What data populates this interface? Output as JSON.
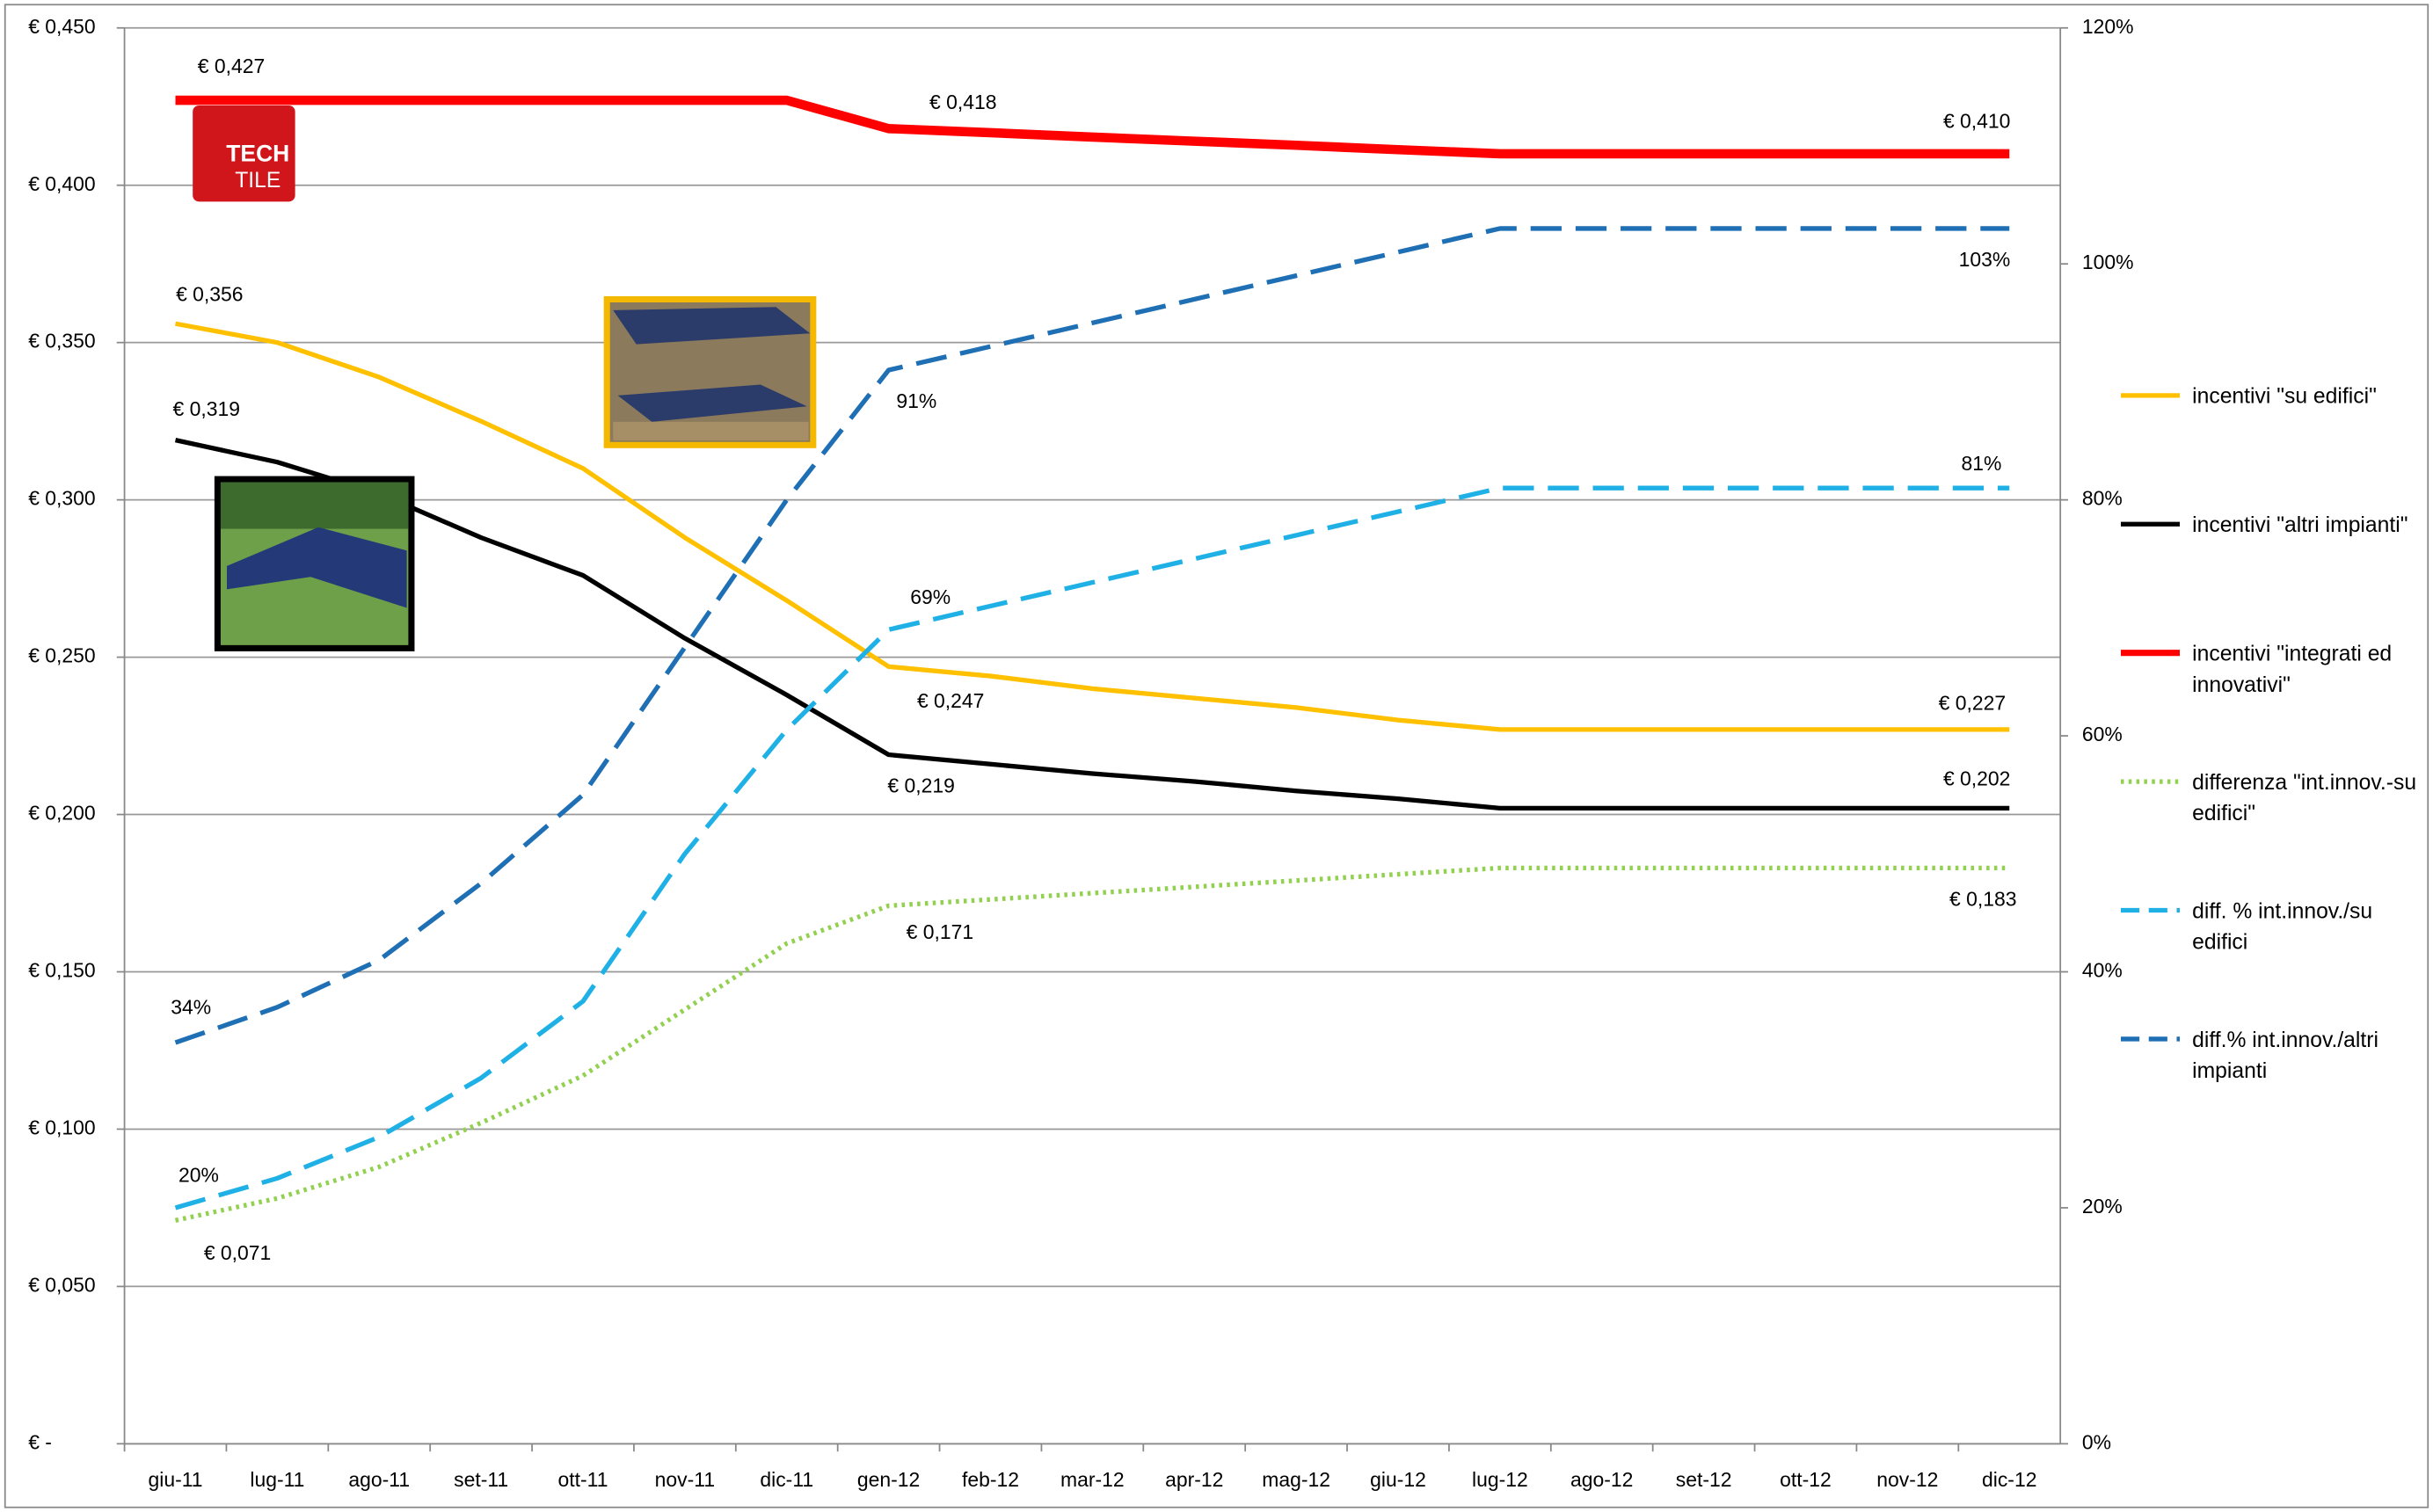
{
  "chart_data": {
    "type": "line",
    "categories": [
      "giu-11",
      "lug-11",
      "ago-11",
      "set-11",
      "ott-11",
      "nov-11",
      "dic-11",
      "gen-12",
      "feb-12",
      "mar-12",
      "apr-12",
      "mag-12",
      "giu-12",
      "lug-12",
      "ago-12",
      "set-12",
      "ott-12",
      "nov-12",
      "dic-12"
    ],
    "ylim": [
      0,
      0.45
    ],
    "yticks": [
      {
        "value": 0,
        "label": "€ -"
      },
      {
        "value": 0.05,
        "label": "€ 0,050"
      },
      {
        "value": 0.1,
        "label": "€ 0,100"
      },
      {
        "value": 0.15,
        "label": "€ 0,150"
      },
      {
        "value": 0.2,
        "label": "€ 0,200"
      },
      {
        "value": 0.25,
        "label": "€ 0,250"
      },
      {
        "value": 0.3,
        "label": "€ 0,300"
      },
      {
        "value": 0.35,
        "label": "€ 0,350"
      },
      {
        "value": 0.4,
        "label": "€ 0,400"
      },
      {
        "value": 0.45,
        "label": "€ 0,450"
      }
    ],
    "y2lim": [
      0,
      120
    ],
    "y2ticks": [
      {
        "value": 0,
        "label": "0%"
      },
      {
        "value": 20,
        "label": "20%"
      },
      {
        "value": 40,
        "label": "40%"
      },
      {
        "value": 60,
        "label": "60%"
      },
      {
        "value": 80,
        "label": "80%"
      },
      {
        "value": 100,
        "label": "100%"
      },
      {
        "value": 120,
        "label": "120%"
      }
    ],
    "grid": true,
    "legend": "right",
    "series": [
      {
        "name": "incentivi \"su edifici\"",
        "color": "#ffc000",
        "style": "solid",
        "values": [
          0.356,
          0.35,
          0.339,
          0.325,
          0.31,
          0.288,
          0.268,
          0.247,
          0.244,
          0.24,
          0.237,
          0.234,
          0.23,
          0.227,
          0.227,
          0.227,
          0.227,
          0.227,
          0.227
        ],
        "value_labels": [
          "€ 0,356",
          null,
          null,
          null,
          null,
          null,
          null,
          "€ 0,247",
          null,
          null,
          null,
          null,
          null,
          null,
          null,
          null,
          null,
          null,
          "€ 0,227"
        ]
      },
      {
        "name": "incentivi \"altri impianti\"",
        "color": "#000000",
        "style": "solid",
        "values": [
          0.319,
          0.312,
          0.302,
          0.288,
          0.276,
          0.256,
          0.238,
          0.219,
          0.216,
          0.213,
          0.2105,
          0.2075,
          0.205,
          0.202,
          0.202,
          0.202,
          0.202,
          0.202,
          0.202
        ],
        "value_labels": [
          "€ 0,319",
          null,
          null,
          null,
          null,
          null,
          null,
          "€ 0,219",
          null,
          null,
          null,
          null,
          null,
          null,
          null,
          null,
          null,
          null,
          "€ 0,202"
        ]
      },
      {
        "name": "incentivi \"integrati ed innovativi\"",
        "color": "#ff0000",
        "style": "thick",
        "values": [
          0.427,
          0.427,
          0.427,
          0.427,
          0.427,
          0.427,
          0.427,
          0.418,
          0.4167,
          0.4153,
          0.414,
          0.4127,
          0.4113,
          0.41,
          0.41,
          0.41,
          0.41,
          0.41,
          0.41
        ],
        "value_labels": [
          "€ 0,427",
          null,
          null,
          null,
          null,
          null,
          null,
          "€ 0,418",
          null,
          null,
          null,
          null,
          null,
          null,
          null,
          null,
          null,
          null,
          "€ 0,410"
        ]
      },
      {
        "name": "differenza \"int.innov.-su edifici\"",
        "color": "#92d050",
        "style": "dotted",
        "values": [
          0.071,
          0.078,
          0.088,
          0.102,
          0.117,
          0.138,
          0.159,
          0.171,
          0.173,
          0.175,
          0.177,
          0.179,
          0.181,
          0.183,
          0.183,
          0.183,
          0.183,
          0.183,
          0.183
        ],
        "value_labels": [
          "€ 0,071",
          null,
          null,
          null,
          null,
          null,
          null,
          "€ 0,171",
          null,
          null,
          null,
          null,
          null,
          null,
          null,
          null,
          null,
          null,
          "€ 0,183"
        ]
      },
      {
        "name": "diff. % int.innov./su edifici",
        "color": "#1fb1e6",
        "style": "dashed",
        "axis": "y2",
        "values": [
          20,
          22.5,
          26,
          31,
          37.5,
          50,
          60.5,
          69,
          71,
          73,
          75,
          77,
          79,
          81,
          81,
          81,
          81,
          81,
          81
        ],
        "value_labels": [
          "20%",
          null,
          null,
          null,
          null,
          null,
          null,
          "69%",
          null,
          null,
          null,
          null,
          null,
          null,
          null,
          null,
          null,
          null,
          "81%"
        ]
      },
      {
        "name": "diff.% int.innov./altri impianti",
        "color": "#1f6fb5",
        "style": "dashed",
        "axis": "y2",
        "values": [
          34,
          37,
          41,
          47.5,
          55,
          67.5,
          80,
          91,
          93,
          95,
          97,
          99,
          101,
          103,
          103,
          103,
          103,
          103,
          103
        ],
        "value_labels": [
          "34%",
          null,
          null,
          null,
          null,
          null,
          null,
          "91%",
          null,
          null,
          null,
          null,
          null,
          null,
          null,
          null,
          null,
          null,
          "103%"
        ]
      }
    ]
  },
  "logo": {
    "lines": [
      "TECH",
      "TILE"
    ]
  }
}
